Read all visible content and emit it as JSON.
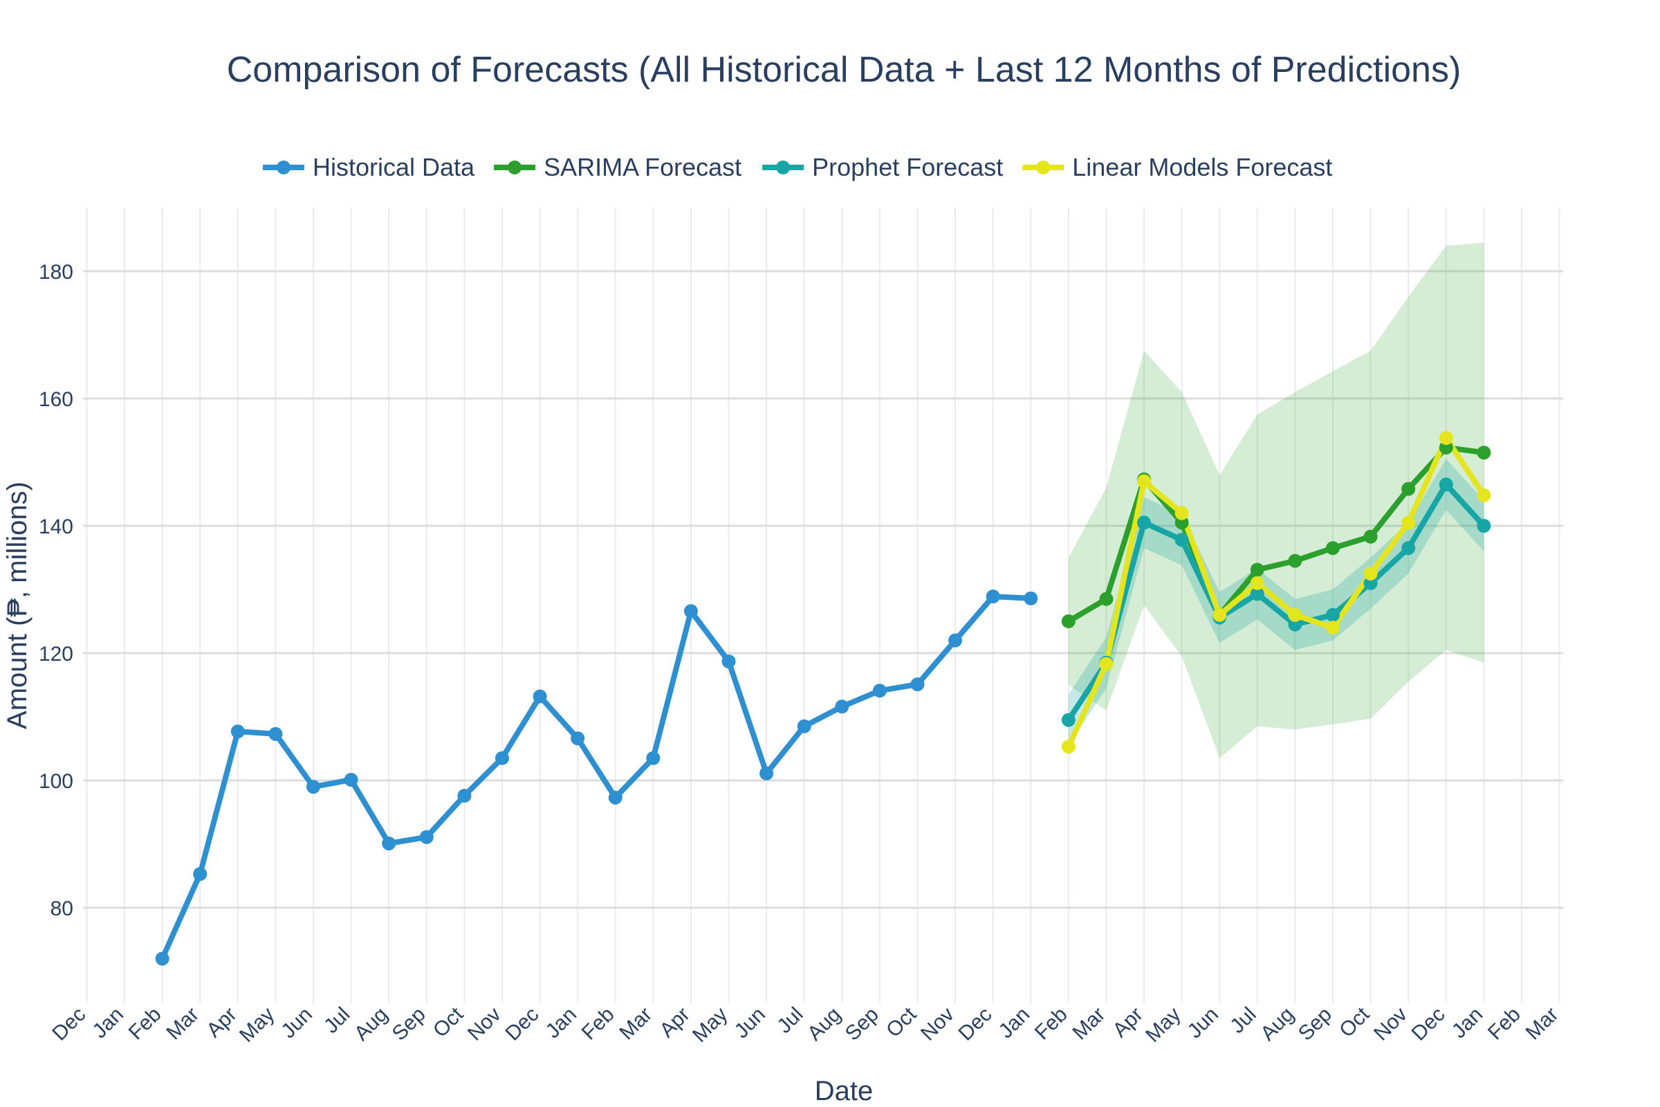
{
  "chart_data": {
    "type": "line",
    "title": "Comparison of Forecasts (All Historical Data + Last 12 Months of Predictions)",
    "xlabel": "Date",
    "ylabel": "Amount (₱, millions)",
    "ylim": [
      65,
      190
    ],
    "xlim": [
      "2020-12",
      "2024-03"
    ],
    "x_tick_labels": [
      "Dec",
      "Jan",
      "Feb",
      "Mar",
      "Apr",
      "May",
      "Jun",
      "Jul",
      "Aug",
      "Sep",
      "Oct",
      "Nov",
      "Dec",
      "Jan",
      "Feb",
      "Mar",
      "Apr",
      "May",
      "Jun",
      "Jul",
      "Aug",
      "Sep",
      "Oct",
      "Nov",
      "Dec",
      "Jan",
      "Feb",
      "Mar",
      "Apr",
      "May",
      "Jun",
      "Jul",
      "Aug",
      "Sep",
      "Oct",
      "Nov",
      "Dec",
      "Jan",
      "Feb",
      "Mar"
    ],
    "y_ticks": [
      80,
      100,
      120,
      140,
      160,
      180
    ],
    "legend_position": "top-center",
    "grid": true,
    "series": [
      {
        "name": "Historical Data",
        "color": "#2e90d1",
        "x": [
          "2021-02",
          "2021-03",
          "2021-04",
          "2021-05",
          "2021-06",
          "2021-07",
          "2021-08",
          "2021-09",
          "2021-10",
          "2021-11",
          "2021-12",
          "2022-01",
          "2022-02",
          "2022-03",
          "2022-04",
          "2022-05",
          "2022-06",
          "2022-07",
          "2022-08",
          "2022-09",
          "2022-10",
          "2022-11",
          "2022-12",
          "2023-01"
        ],
        "values": [
          72,
          85.3,
          107.7,
          107.3,
          99,
          100.1,
          90.1,
          91.1,
          97.6,
          103.5,
          113.2,
          106.6,
          97.3,
          103.5,
          126.6,
          118.7,
          101.1,
          108.5,
          111.6,
          114.1,
          115.1,
          122,
          128.9,
          128.6
        ]
      },
      {
        "name": "SARIMA Forecast",
        "color": "#2ca02c",
        "x": [
          "2023-02",
          "2023-03",
          "2023-04",
          "2023-05",
          "2023-06",
          "2023-07",
          "2023-08",
          "2023-09",
          "2023-10",
          "2023-11",
          "2023-12",
          "2024-01"
        ],
        "values": [
          125,
          128.5,
          147.3,
          140.5,
          126,
          133.1,
          134.5,
          136.5,
          138.3,
          145.8,
          152.3,
          151.5
        ],
        "ci_lower": [
          115,
          111,
          127.5,
          119.5,
          103.5,
          108.5,
          108,
          108.8,
          109.7,
          115.5,
          120.5,
          118.5
        ],
        "ci_upper": [
          135,
          146,
          167.5,
          161,
          148,
          157.5,
          161,
          164.3,
          167.5,
          176,
          184,
          184.5
        ]
      },
      {
        "name": "Prophet Forecast",
        "color": "#17a5a5",
        "x": [
          "2023-02",
          "2023-03",
          "2023-04",
          "2023-05",
          "2023-06",
          "2023-07",
          "2023-08",
          "2023-09",
          "2023-10",
          "2023-11",
          "2023-12",
          "2024-01"
        ],
        "values": [
          109.5,
          118.5,
          140.5,
          137.8,
          125.6,
          129.3,
          124.5,
          126,
          131,
          136.5,
          146.5,
          140
        ],
        "ci_lower": [
          105.5,
          114.5,
          136.5,
          133.8,
          121.6,
          125.3,
          120.5,
          122,
          127,
          132.5,
          142.5,
          136
        ],
        "ci_upper": [
          113.5,
          122.5,
          144.5,
          141.8,
          129.6,
          133.3,
          128.5,
          130,
          135,
          140.5,
          150.5,
          144
        ]
      },
      {
        "name": "Linear Models Forecast",
        "color": "#e5e51e",
        "x": [
          "2023-02",
          "2023-03",
          "2023-04",
          "2023-05",
          "2023-06",
          "2023-07",
          "2023-08",
          "2023-09",
          "2023-10",
          "2023-11",
          "2023-12",
          "2024-01"
        ],
        "values": [
          105.3,
          118.3,
          147,
          142,
          126,
          131,
          126,
          124,
          132.5,
          140.5,
          153.8,
          144.8
        ]
      }
    ]
  }
}
